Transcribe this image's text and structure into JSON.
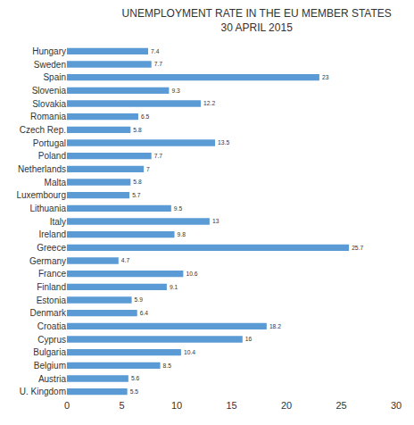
{
  "chart_data": {
    "type": "bar",
    "orientation": "horizontal",
    "title": "UNEMPLOYMENT RATE IN THE EU MEMBER STATES",
    "subtitle": "30 APRIL 2015",
    "categories": [
      "Hungary",
      "Sweden",
      "Spain",
      "Slovenia",
      "Slovakia",
      "Romania",
      "Czech Rep.",
      "Portugal",
      "Poland",
      "Netherlands",
      "Malta",
      "Luxembourg",
      "Lithuania",
      "Italy",
      "Ireland",
      "Greece",
      "Germany",
      "France",
      "Finland",
      "Estonia",
      "Denmark",
      "Croatia",
      "Cyprus",
      "Bulgaria",
      "Belgium",
      "Austria",
      "U. Kingdom"
    ],
    "values": [
      7.4,
      7.7,
      23,
      9.3,
      12.2,
      6.5,
      5.8,
      13.5,
      7.7,
      7,
      5.8,
      5.7,
      9.5,
      13,
      9.8,
      25.7,
      4.7,
      10.6,
      9.1,
      5.9,
      6.4,
      18.2,
      16,
      10.4,
      8.5,
      5.6,
      5.5
    ],
    "color": "#5b9bd5",
    "xlim": [
      0,
      30
    ],
    "xticks": [
      0,
      5,
      10,
      15,
      20,
      25,
      30
    ],
    "grid": false,
    "data_labels": true
  }
}
